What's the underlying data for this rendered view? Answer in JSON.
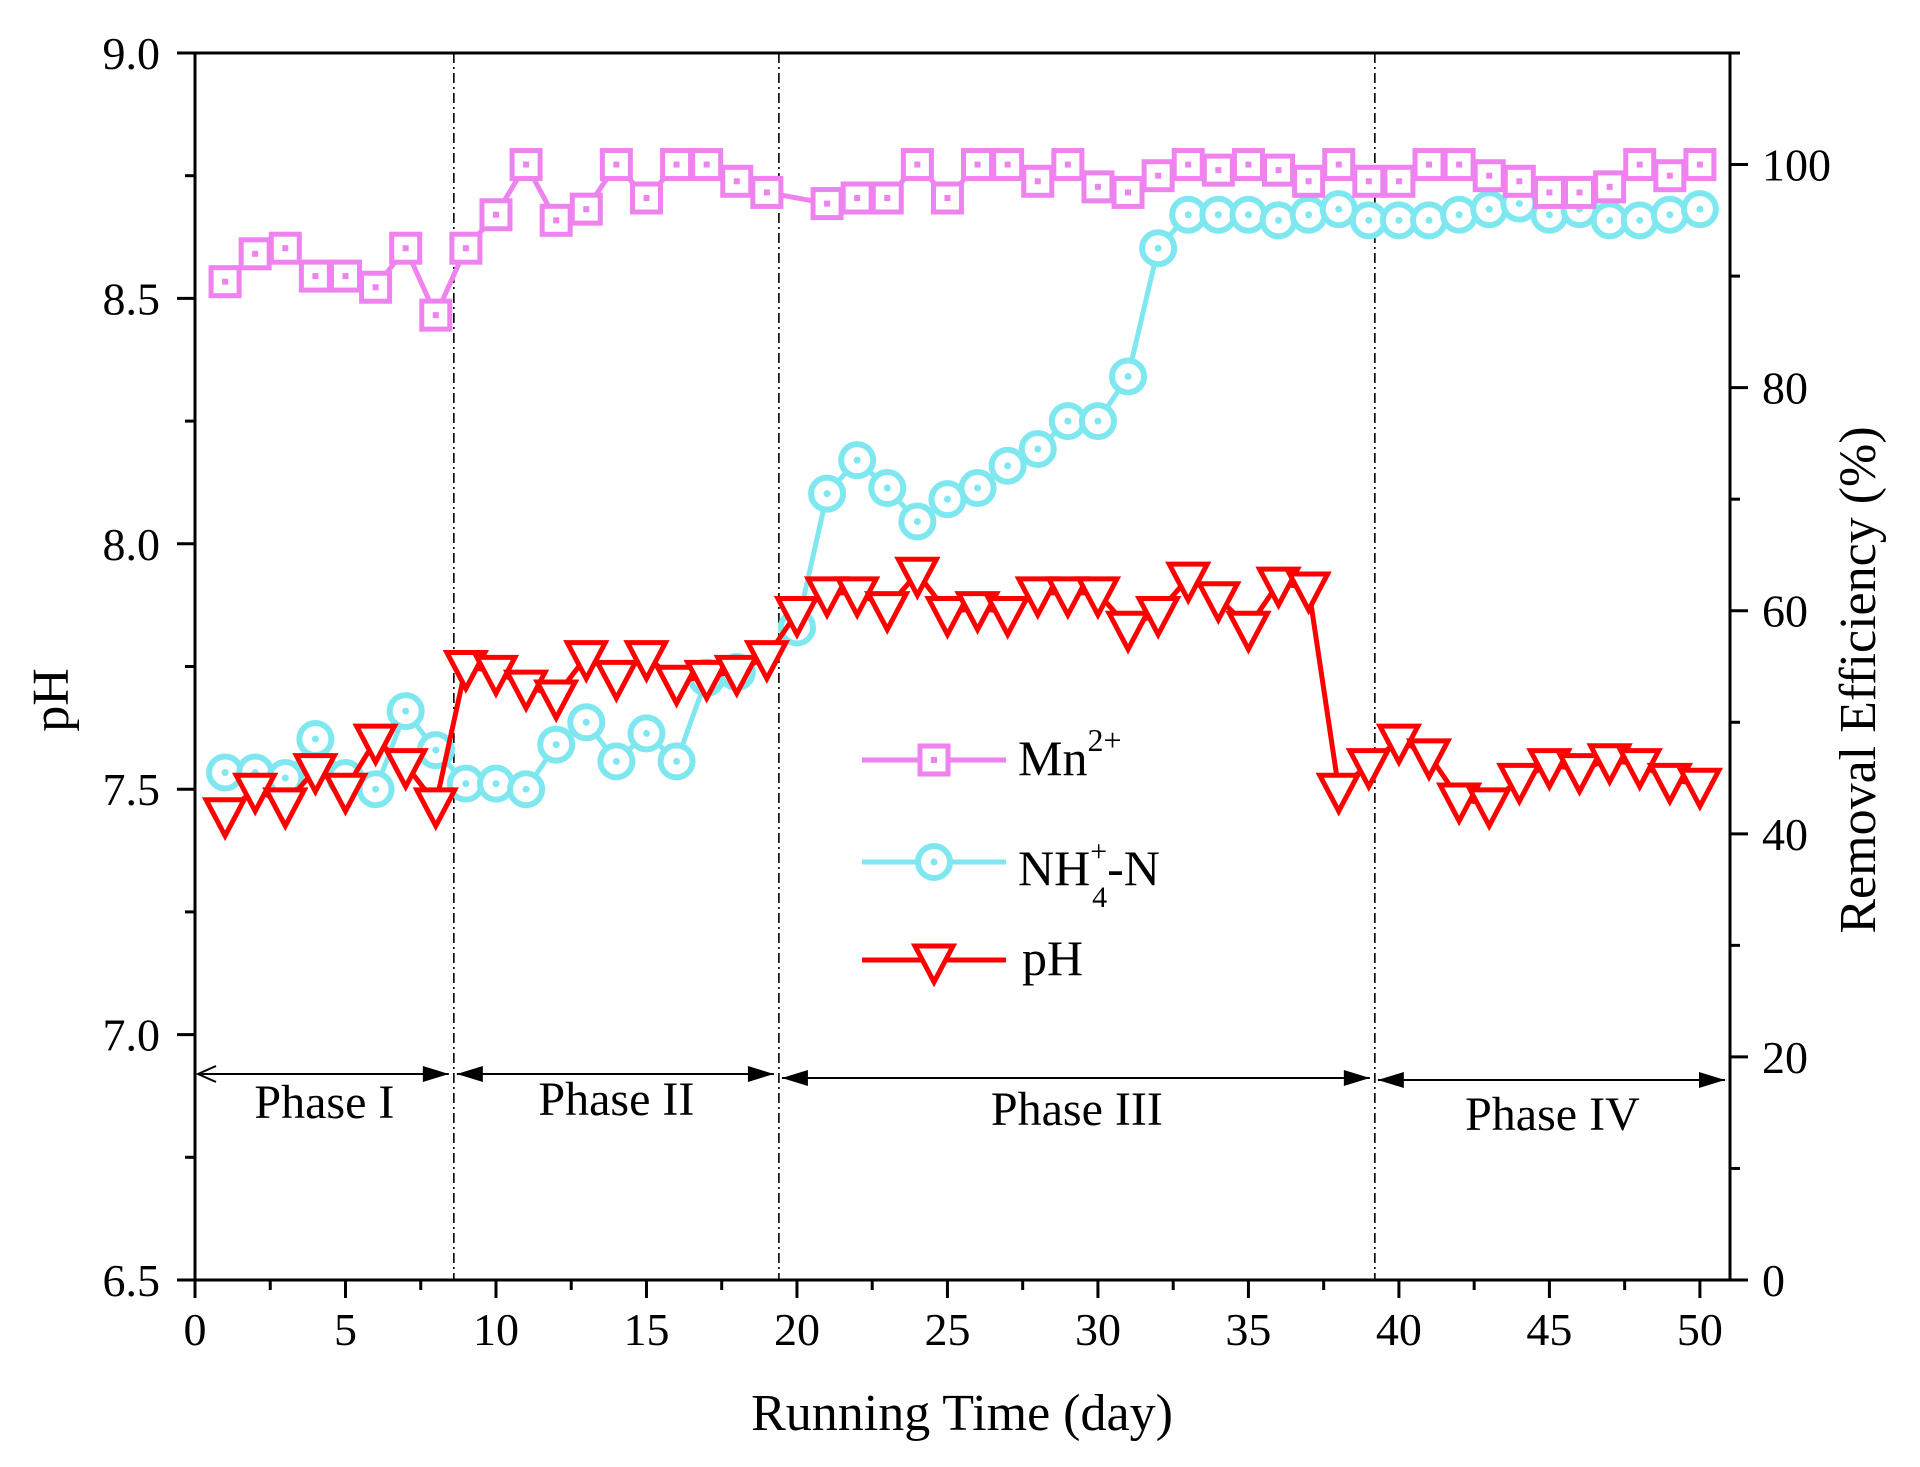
{
  "chart_data": {
    "type": "line",
    "xlabel": "Running Time (day)",
    "ylabel_left": "pH",
    "ylabel_right": "Removal  Efficiency (%)",
    "xlim": [
      0,
      51
    ],
    "ylim_left": [
      6.5,
      9.0
    ],
    "ylim_right": [
      0,
      110
    ],
    "x_ticks": [
      "0",
      "5",
      "10",
      "15",
      "20",
      "25",
      "30",
      "35",
      "40",
      "45",
      "50"
    ],
    "y_left_ticks": [
      "6.5",
      "7.0",
      "7.5",
      "8.0",
      "8.5",
      "9.0"
    ],
    "y_right_ticks": [
      "0",
      "20",
      "40",
      "60",
      "80",
      "100"
    ],
    "phase_boundaries": [
      8.6,
      19.4,
      39.2
    ],
    "phases": [
      {
        "label": "Phase I",
        "from": 0,
        "to": 8.6
      },
      {
        "label": "Phase II",
        "from": 8.6,
        "to": 19.4
      },
      {
        "label": "Phase III",
        "from": 19.4,
        "to": 39.2
      },
      {
        "label": "Phase IV",
        "from": 39.2,
        "to": 51
      }
    ],
    "series": [
      {
        "name": "Mn2+",
        "legend_base": "Mn",
        "legend_sup": "2+",
        "axis": "right",
        "color": "#ee82ee",
        "marker": "square",
        "x": [
          1,
          2,
          3,
          4,
          5,
          6,
          7,
          8,
          9,
          10,
          11,
          12,
          13,
          14,
          15,
          16,
          17,
          18,
          19,
          21,
          22,
          23,
          24,
          25,
          26,
          27,
          28,
          29,
          30,
          31,
          32,
          33,
          34,
          35,
          36,
          37,
          38,
          39,
          40,
          41,
          42,
          43,
          44,
          45,
          46,
          47,
          48,
          49,
          50
        ],
        "values": [
          89.5,
          92,
          92.5,
          90,
          90,
          89,
          92.5,
          86.5,
          92.5,
          95.5,
          100,
          95,
          96,
          100,
          97,
          100,
          100,
          98.5,
          97.5,
          96.5,
          97,
          97,
          100,
          97,
          100,
          100,
          98.5,
          100,
          98,
          97.5,
          99,
          100,
          99.5,
          100,
          99.5,
          98.5,
          100,
          98.5,
          98.5,
          100,
          100,
          99,
          98.5,
          97.5,
          97.5,
          98,
          100,
          99,
          100
        ]
      },
      {
        "name": "NH4+-N",
        "legend_base": "NH",
        "legend_sup": "+",
        "legend_sub": "4",
        "legend_suffix": "-N",
        "axis": "right",
        "color": "#7fe7ef",
        "marker": "circle",
        "x": [
          1,
          2,
          3,
          4,
          5,
          6,
          7,
          8,
          9,
          10,
          11,
          12,
          13,
          14,
          15,
          16,
          17,
          18,
          19,
          20,
          21,
          22,
          23,
          24,
          25,
          26,
          27,
          28,
          29,
          30,
          31,
          32,
          33,
          34,
          35,
          36,
          37,
          38,
          39,
          40,
          41,
          42,
          43,
          44,
          45,
          46,
          47,
          48,
          49,
          50
        ],
        "values": [
          45.5,
          45.5,
          45,
          48.5,
          45,
          44,
          51,
          47.5,
          44.5,
          44.5,
          44,
          48,
          50,
          46.5,
          49,
          46.5,
          54,
          54.5,
          null,
          58.5,
          70.5,
          73.5,
          71,
          68,
          70,
          71,
          73,
          74.5,
          77,
          77,
          81,
          92.5,
          95.5,
          95.5,
          95.5,
          95,
          95.5,
          96,
          95,
          95,
          95,
          95.5,
          96,
          96.5,
          95.5,
          96,
          95,
          95,
          95.5,
          96
        ]
      },
      {
        "name": "pH",
        "legend_base": "pH",
        "axis": "left",
        "color": "#ff0000",
        "marker": "triangle-down",
        "x": [
          1,
          2,
          3,
          4,
          5,
          6,
          7,
          8,
          9,
          10,
          11,
          12,
          13,
          14,
          15,
          16,
          17,
          18,
          19,
          20,
          21,
          22,
          23,
          24,
          25,
          26,
          27,
          28,
          29,
          30,
          31,
          32,
          33,
          34,
          35,
          36,
          37,
          38,
          39,
          40,
          41,
          42,
          43,
          44,
          45,
          46,
          47,
          48,
          49,
          50
        ],
        "values": [
          7.45,
          7.5,
          7.47,
          7.54,
          7.5,
          7.6,
          7.55,
          7.47,
          7.75,
          7.74,
          7.71,
          7.69,
          7.77,
          7.73,
          7.77,
          7.72,
          7.73,
          7.74,
          7.77,
          7.86,
          7.9,
          7.9,
          7.87,
          7.94,
          7.86,
          7.87,
          7.86,
          7.9,
          7.9,
          7.9,
          7.83,
          7.86,
          7.93,
          7.89,
          7.83,
          7.92,
          7.91,
          7.5,
          7.55,
          7.6,
          7.57,
          7.48,
          7.47,
          7.52,
          7.55,
          7.54,
          7.56,
          7.55,
          7.52,
          7.51
        ]
      }
    ]
  }
}
